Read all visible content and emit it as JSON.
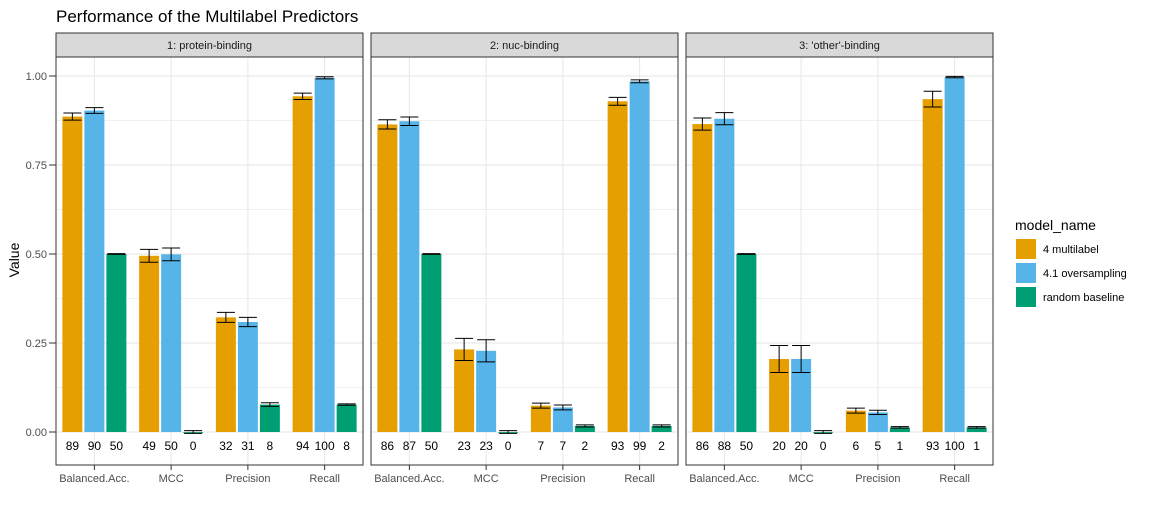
{
  "chart_data": {
    "type": "bar",
    "title": "Performance of the Multilabel Predictors",
    "xlabel": "",
    "ylabel": "Value",
    "ylim": [
      0,
      1.05
    ],
    "yticks": [
      "0.00",
      "0.25",
      "0.50",
      "0.75",
      "1.00"
    ],
    "ytick_values": [
      0,
      0.25,
      0.5,
      0.75,
      1.0
    ],
    "grid": true,
    "legend": {
      "title": "model_name",
      "position": "right",
      "entries": [
        "4 multilabel",
        "4.1 oversampling",
        "random baseline"
      ]
    },
    "colors": [
      "#E69F00",
      "#56B4E9",
      "#009E73"
    ],
    "categories": [
      "Balanced.Acc.",
      "MCC",
      "Precision",
      "Recall"
    ],
    "panels": [
      {
        "strip": "1: protein-binding",
        "series": [
          {
            "name": "4 multilabel",
            "values": [
              0.886,
              0.495,
              0.322,
              0.943
            ],
            "errors": [
              0.01,
              0.018,
              0.014,
              0.009
            ],
            "labels": [
              "89",
              "49",
              "32",
              "94"
            ]
          },
          {
            "name": "4.1 oversampling",
            "values": [
              0.903,
              0.499,
              0.309,
              0.995
            ],
            "errors": [
              0.008,
              0.018,
              0.013,
              0.003
            ],
            "labels": [
              "90",
              "50",
              "31",
              "100"
            ]
          },
          {
            "name": "random baseline",
            "values": [
              0.5,
              0.0,
              0.077,
              0.077
            ],
            "errors": [
              0.001,
              0.004,
              0.005,
              0.002
            ],
            "labels": [
              "50",
              "0",
              "8",
              "8"
            ]
          }
        ]
      },
      {
        "strip": "2: nuc-binding",
        "series": [
          {
            "name": "4 multilabel",
            "values": [
              0.864,
              0.232,
              0.074,
              0.929
            ],
            "errors": [
              0.013,
              0.031,
              0.007,
              0.011
            ],
            "labels": [
              "86",
              "23",
              "7",
              "93"
            ]
          },
          {
            "name": "4.1 oversampling",
            "values": [
              0.873,
              0.228,
              0.069,
              0.985
            ],
            "errors": [
              0.012,
              0.031,
              0.007,
              0.004
            ],
            "labels": [
              "87",
              "23",
              "7",
              "99"
            ]
          },
          {
            "name": "random baseline",
            "values": [
              0.5,
              0.0,
              0.017,
              0.017
            ],
            "errors": [
              0.001,
              0.004,
              0.003,
              0.003
            ],
            "labels": [
              "50",
              "0",
              "2",
              "2"
            ]
          }
        ]
      },
      {
        "strip": "3: 'other'-binding",
        "series": [
          {
            "name": "4 multilabel",
            "values": [
              0.865,
              0.205,
              0.06,
              0.935
            ],
            "errors": [
              0.017,
              0.038,
              0.007,
              0.022
            ],
            "labels": [
              "86",
              "20",
              "6",
              "93"
            ]
          },
          {
            "name": "4.1 oversampling",
            "values": [
              0.88,
              0.205,
              0.055,
              0.997
            ],
            "errors": [
              0.017,
              0.038,
              0.006,
              0.002
            ],
            "labels": [
              "88",
              "20",
              "5",
              "100"
            ]
          },
          {
            "name": "random baseline",
            "values": [
              0.5,
              0.0,
              0.013,
              0.013
            ],
            "errors": [
              0.001,
              0.004,
              0.002,
              0.002
            ],
            "labels": [
              "50",
              "0",
              "1",
              "1"
            ]
          }
        ]
      }
    ]
  }
}
